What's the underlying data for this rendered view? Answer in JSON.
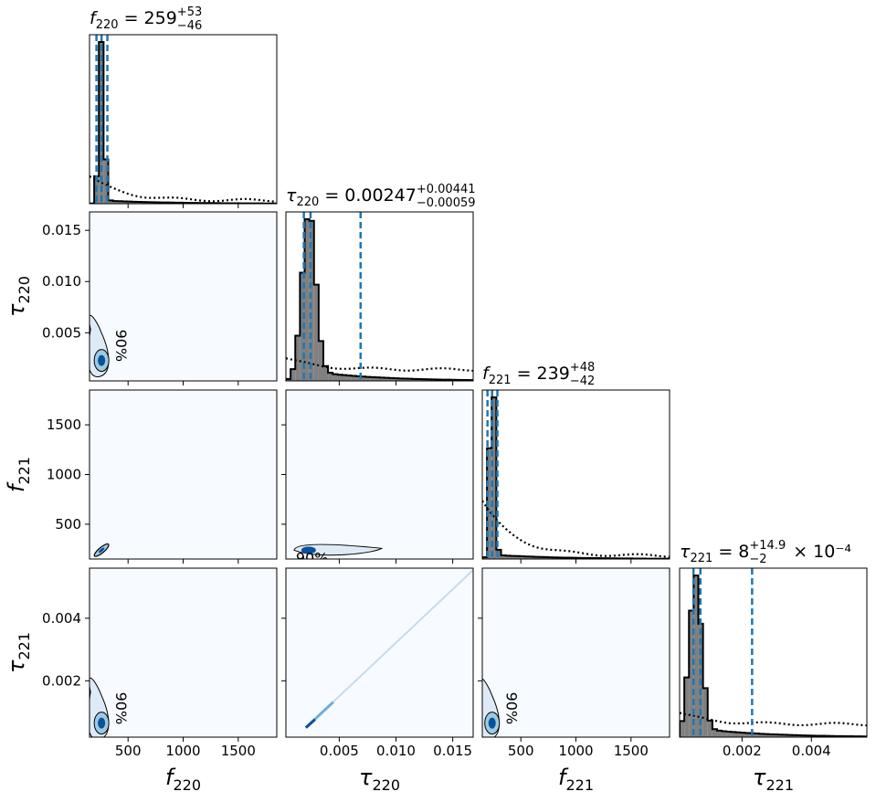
{
  "chart_data": {
    "type": "corner",
    "parameters": [
      {
        "symbol": "f",
        "sub": "220",
        "range": [
          150,
          1850
        ],
        "ticks": [
          500,
          1000,
          1500
        ],
        "tick_labels": [
          "500",
          "1000",
          "1500"
        ],
        "title": {
          "value": "259",
          "plus": "+53",
          "minus": "−46",
          "suffix": ""
        },
        "quantiles": [
          213,
          259,
          312
        ],
        "peak": 259,
        "width": 24,
        "tail": 0.02,
        "prior": [
          0.15,
          0.02
        ]
      },
      {
        "symbol": "τ",
        "sub": "220",
        "range": [
          0.0003,
          0.0168
        ],
        "ticks": [
          0.005,
          0.01,
          0.015
        ],
        "tick_labels": [
          "0.005",
          "0.010",
          "0.015"
        ],
        "title": {
          "value": "0.00247",
          "plus": "+0.00441",
          "minus": "−0.00059",
          "suffix": ""
        },
        "quantiles": [
          0.00188,
          0.00247,
          0.00688
        ],
        "peak": 0.0023,
        "width": 0.0006,
        "tail": 0.06,
        "prior": [
          0.07,
          0.07
        ]
      },
      {
        "symbol": "f",
        "sub": "221",
        "range": [
          150,
          1850
        ],
        "ticks": [
          500,
          1000,
          1500
        ],
        "tick_labels": [
          "500",
          "1000",
          "1500"
        ],
        "title": {
          "value": "239",
          "plus": "+48",
          "minus": "−42",
          "suffix": ""
        },
        "quantiles": [
          197,
          239,
          287
        ],
        "peak": 239,
        "width": 22,
        "tail": 0.02,
        "prior": [
          0.34,
          0.02
        ]
      },
      {
        "symbol": "τ",
        "sub": "221",
        "range": [
          0.0002,
          0.0056
        ],
        "ticks": [
          0.002,
          0.004
        ],
        "tick_labels": [
          "0.002",
          "0.004"
        ],
        "title": {
          "value": "8",
          "plus": "+14.9",
          "minus": "−2",
          "suffix": "× 10⁻⁴"
        },
        "quantiles": [
          0.0006,
          0.0008,
          0.00229
        ],
        "peak": 0.00065,
        "width": 0.00018,
        "tail": 0.06,
        "prior": [
          0.07,
          0.08
        ]
      }
    ],
    "ylabel_ticks": {
      "1": {
        "ticks": [
          0.005,
          0.01,
          0.015
        ],
        "tick_labels": [
          "0.005",
          "0.010",
          "0.015"
        ]
      },
      "2": {
        "ticks": [
          500,
          1000,
          1500
        ],
        "tick_labels": [
          "500",
          "1000",
          "1500"
        ]
      },
      "3": {
        "ticks": [
          0.002,
          0.004
        ],
        "tick_labels": [
          "0.002",
          "0.004"
        ]
      }
    },
    "contour_label": "90%",
    "colors": {
      "posterior_fill": "#808080",
      "quantile_line": "#1f77b4",
      "density_low": "#f7fbff",
      "density_high": "#08519c",
      "contour": "#000000"
    }
  }
}
